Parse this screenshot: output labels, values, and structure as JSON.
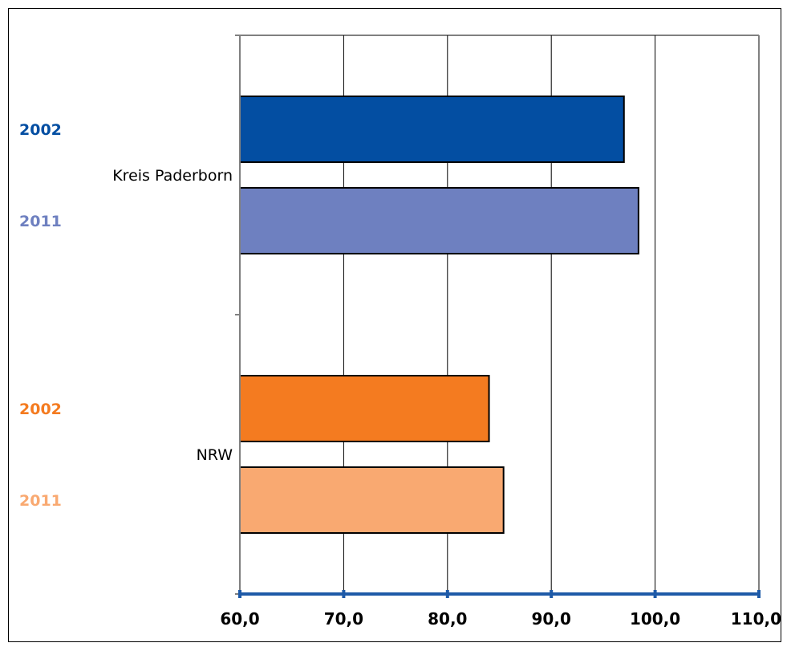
{
  "chart_data": {
    "type": "bar",
    "orientation": "horizontal",
    "categories": [
      "Kreis Paderborn",
      "NRW"
    ],
    "series": [
      {
        "name": "2002",
        "values": [
          97.0,
          84.0
        ],
        "colors": [
          "#034EA2",
          "#F47B20"
        ]
      },
      {
        "name": "2011",
        "values": [
          98.4,
          85.4
        ],
        "colors": [
          "#6E80C0",
          "#F9A971"
        ]
      }
    ],
    "xlim": [
      60,
      110
    ],
    "xticks": [
      "60,0",
      "70,0",
      "80,0",
      "90,0",
      "100,0",
      "110,0"
    ],
    "tick_values": [
      60,
      70,
      80,
      90,
      100,
      110
    ],
    "grid": true,
    "axis_color": "#1E5AA8"
  }
}
